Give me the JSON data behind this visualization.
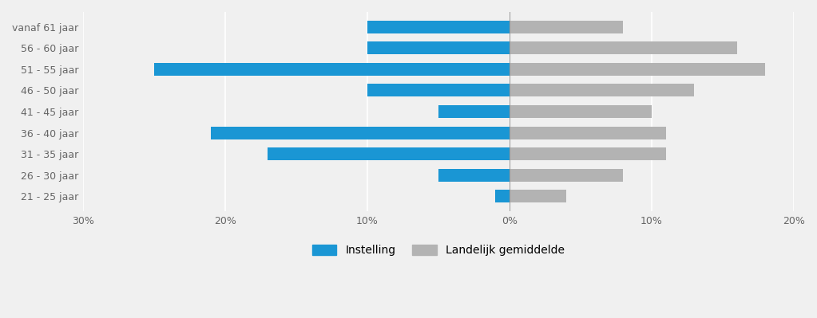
{
  "categories": [
    "vanaf 61 jaar",
    "56 - 60 jaar",
    "51 - 55 jaar",
    "46 - 50 jaar",
    "41 - 45 jaar",
    "36 - 40 jaar",
    "31 - 35 jaar",
    "26 - 30 jaar",
    "21 - 25 jaar"
  ],
  "instelling": [
    -10,
    -10,
    -25,
    -10,
    -5,
    -21,
    -17,
    -5,
    -1
  ],
  "landelijk": [
    8,
    16,
    18,
    13,
    10,
    11,
    11,
    8,
    4
  ],
  "instelling_color": "#1a96d4",
  "landelijk_color": "#b3b3b3",
  "background_color": "#f0f0f0",
  "plot_bg_color": "#f0f0f0",
  "xlim": [
    -30,
    20
  ],
  "xticks": [
    -30,
    -20,
    -10,
    0,
    10,
    20
  ],
  "xticklabels": [
    "30%",
    "20%",
    "10%",
    "0%",
    "10%",
    "20%"
  ],
  "legend_instelling": "Instelling",
  "legend_landelijk": "Landelijk gemiddelde",
  "bar_height": 0.6,
  "fontsize_ticks": 9,
  "fontsize_legend": 10,
  "tick_color": "#666666"
}
